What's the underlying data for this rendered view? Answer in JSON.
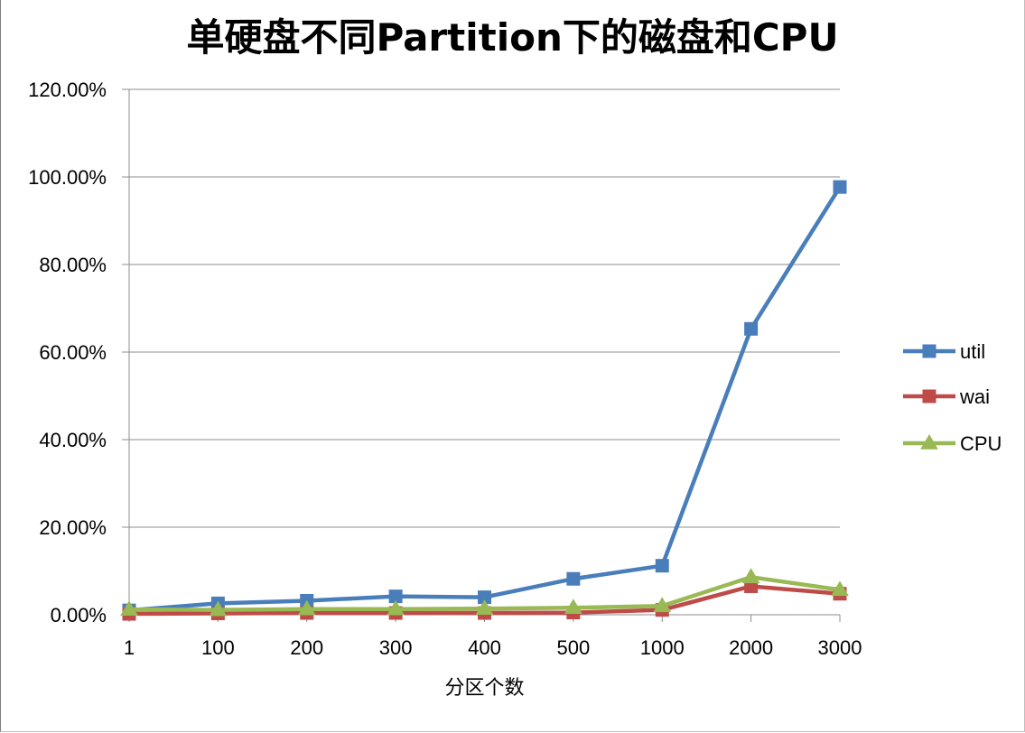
{
  "chart_data": {
    "type": "line",
    "title": "单硬盘不同Partition下的磁盘和CPU",
    "xlabel": "分区个数",
    "ylabel": "",
    "categories": [
      "1",
      "100",
      "200",
      "300",
      "400",
      "500",
      "1000",
      "2000",
      "3000"
    ],
    "ylim": [
      0,
      1.2
    ],
    "yticks": [
      "0.00%",
      "20.00%",
      "40.00%",
      "60.00%",
      "80.00%",
      "100.00%",
      "120.00%"
    ],
    "grid": true,
    "legend_position": "right",
    "series": [
      {
        "name": "util",
        "color": "#4a7ebb",
        "marker": "square",
        "values": [
          0.01,
          0.026,
          0.032,
          0.042,
          0.04,
          0.082,
          0.112,
          0.653,
          0.977
        ]
      },
      {
        "name": "wai",
        "color": "#be4b48",
        "marker": "square",
        "values": [
          0.002,
          0.003,
          0.004,
          0.004,
          0.004,
          0.005,
          0.011,
          0.065,
          0.048
        ]
      },
      {
        "name": "CPU",
        "color": "#98b954",
        "marker": "triangle",
        "values": [
          0.012,
          0.011,
          0.013,
          0.013,
          0.014,
          0.016,
          0.02,
          0.086,
          0.057
        ]
      }
    ]
  }
}
